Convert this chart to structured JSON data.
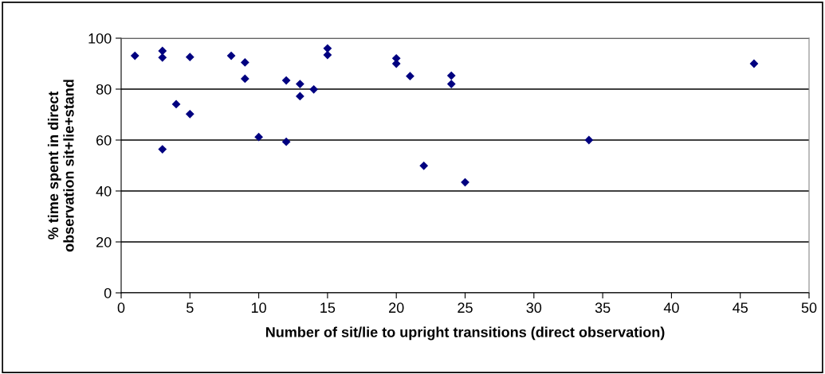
{
  "chart_data": {
    "type": "scatter",
    "xlabel": "Number of sit/lie to upright transitions (direct observation)",
    "ylabel": "% time spent in direct\nobservation sit+lie+stand",
    "series": [
      {
        "color": "#000080",
        "x": [
          1,
          3,
          3,
          3,
          4,
          5,
          5,
          8,
          9,
          9,
          10,
          12,
          12,
          13,
          13,
          14,
          15,
          15,
          20,
          20,
          21,
          22,
          24,
          24,
          25,
          34,
          46
        ],
        "values": [
          93.1,
          95.0,
          92.4,
          56.4,
          74.1,
          92.6,
          70.2,
          93.1,
          90.5,
          84.1,
          61.2,
          83.4,
          59.3,
          82.0,
          77.2,
          79.9,
          96.0,
          93.4,
          92.1,
          90.0,
          85.1,
          49.9,
          85.3,
          82.0,
          43.4,
          60.0,
          90.0
        ]
      }
    ],
    "xlim": [
      0,
      50
    ],
    "xticks": [
      0,
      5,
      10,
      15,
      20,
      25,
      30,
      35,
      40,
      45,
      50
    ],
    "ylim": [
      0,
      100
    ],
    "yticks": [
      0,
      20,
      40,
      60,
      80,
      100
    ],
    "grid": "y",
    "marker": "diamond",
    "legend": false
  }
}
